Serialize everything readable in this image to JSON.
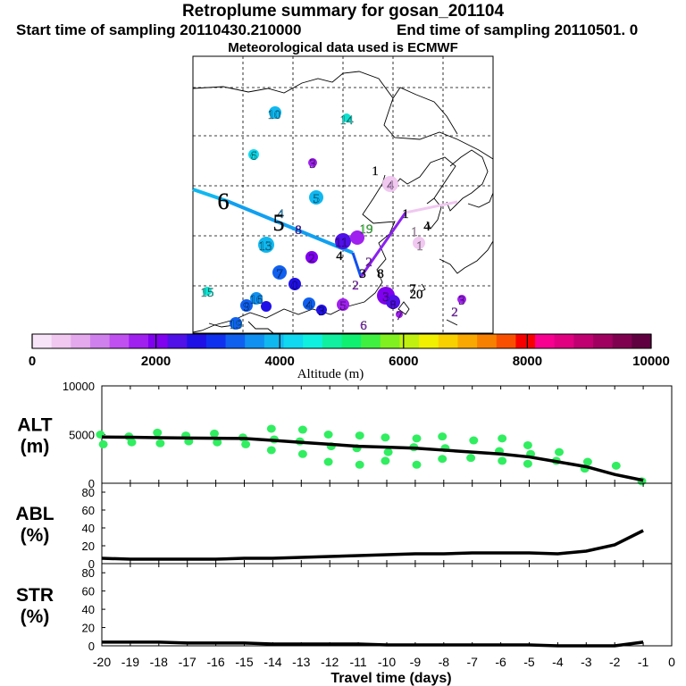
{
  "header": {
    "title": "Retroplume summary for gosan_201104",
    "start": "Start time of sampling 20110430.210000",
    "end": "End time of sampling 20110501.     0",
    "met": "Meteorological data used is ECMWF"
  },
  "colorbar": {
    "label": "Altitude (m)",
    "ticks": [
      "0",
      "2000",
      "4000",
      "6000",
      "8000",
      "10000"
    ],
    "colors": [
      "#f8e4f8",
      "#f0c8f0",
      "#e4a8ec",
      "#d080ec",
      "#c050f0",
      "#a020f0",
      "#8000f0",
      "#5010e8",
      "#2010e8",
      "#1030f0",
      "#1060f0",
      "#1090f0",
      "#10b8f0",
      "#10d8f0",
      "#10f0e0",
      "#10f0a0",
      "#10f070",
      "#40f040",
      "#80f020",
      "#c0f010",
      "#f0f000",
      "#f8d000",
      "#f8a800",
      "#f88000",
      "#f85000",
      "#f80000",
      "#f80090",
      "#e00080",
      "#c00070",
      "#a00060",
      "#800050",
      "#600040"
    ]
  },
  "map_labels": [
    {
      "t": "10",
      "x": 307,
      "y": 127,
      "c": "#10b8f0"
    },
    {
      "t": "14",
      "x": 388,
      "y": 133,
      "c": "#10e0d0"
    },
    {
      "t": "6",
      "x": 284,
      "y": 173,
      "c": "#10e0d0"
    },
    {
      "t": "3",
      "x": 350,
      "y": 182,
      "c": "#a020f0"
    },
    {
      "t": "1",
      "x": 420,
      "y": 190,
      "c": "#000000"
    },
    {
      "t": "4",
      "x": 437,
      "y": 206,
      "c": "#e0a8ec"
    },
    {
      "t": "5",
      "x": 354,
      "y": 221,
      "c": "#10b8f0"
    },
    {
      "t": "6",
      "x": 250,
      "y": 228,
      "c": "#000000"
    },
    {
      "t": "4",
      "x": 314,
      "y": 238,
      "c": "#10a0f0"
    },
    {
      "t": "1",
      "x": 454,
      "y": 238,
      "c": "#000000"
    },
    {
      "t": "5",
      "x": 312,
      "y": 252,
      "c": "#000000"
    },
    {
      "t": "4",
      "x": 478,
      "y": 252,
      "c": "#000000"
    },
    {
      "t": "8",
      "x": 334,
      "y": 256,
      "c": "#5010e8"
    },
    {
      "t": "19",
      "x": 410,
      "y": 255,
      "c": "#40f040"
    },
    {
      "t": "1",
      "x": 464,
      "y": 258,
      "c": "#f0c8f0"
    },
    {
      "t": "11",
      "x": 382,
      "y": 270,
      "c": "#5010e8"
    },
    {
      "t": "13",
      "x": 297,
      "y": 274,
      "c": "#10b8f0"
    },
    {
      "t": "1",
      "x": 470,
      "y": 274,
      "c": "#f0c8f0"
    },
    {
      "t": "4",
      "x": 380,
      "y": 285,
      "c": "#000000"
    },
    {
      "t": "2",
      "x": 349,
      "y": 288,
      "c": "#8000f0"
    },
    {
      "t": "2",
      "x": 413,
      "y": 292,
      "c": "#a020f0"
    },
    {
      "t": "7",
      "x": 313,
      "y": 305,
      "c": "#1060f0"
    },
    {
      "t": "3",
      "x": 406,
      "y": 305,
      "c": "#000000"
    },
    {
      "t": "8",
      "x": 426,
      "y": 305,
      "c": "#000000"
    },
    {
      "t": "0",
      "x": 330,
      "y": 318,
      "c": "#2010e8"
    },
    {
      "t": "2",
      "x": 398,
      "y": 318,
      "c": "#a020f0"
    },
    {
      "t": "15",
      "x": 232,
      "y": 326,
      "c": "#10e0d0"
    },
    {
      "t": "3",
      "x": 432,
      "y": 331,
      "c": "#8000f0"
    },
    {
      "t": "7",
      "x": 462,
      "y": 322,
      "c": "#000000"
    },
    {
      "t": "20",
      "x": 466,
      "y": 328,
      "c": "#000000"
    },
    {
      "t": "16",
      "x": 287,
      "y": 334,
      "c": "#1090f0"
    },
    {
      "t": "3",
      "x": 517,
      "y": 335,
      "c": "#a020f0"
    },
    {
      "t": "9",
      "x": 276,
      "y": 342,
      "c": "#1060f0"
    },
    {
      "t": "4",
      "x": 346,
      "y": 340,
      "c": "#1060f0"
    },
    {
      "t": "8",
      "x": 440,
      "y": 340,
      "c": "#5010e8"
    },
    {
      "t": "3",
      "x": 360,
      "y": 347,
      "c": "#2010e8"
    },
    {
      "t": "5",
      "x": 384,
      "y": 341,
      "c": "#a020f0"
    },
    {
      "t": "2",
      "x": 509,
      "y": 348,
      "c": "#a020f0"
    },
    {
      "t": "7",
      "x": 447,
      "y": 352,
      "c": "#a020f0"
    },
    {
      "t": "19",
      "x": 264,
      "y": 362,
      "c": "#1090f0"
    },
    {
      "t": "6",
      "x": 407,
      "y": 363,
      "c": "#a020f0"
    }
  ],
  "chart_data": [
    {
      "type": "line",
      "panel": "ALT",
      "ylabel": "ALT\n(m)",
      "ylim": [
        0,
        10000
      ],
      "yticks": [
        "10000",
        "5000",
        "0"
      ],
      "x": [
        -20,
        -19,
        -18,
        -17,
        -16,
        -15,
        -14,
        -13,
        -12,
        -11,
        -10,
        -9,
        -8,
        -7,
        -6,
        -5,
        -4,
        -3,
        -2,
        -1
      ],
      "values": [
        4750,
        4720,
        4680,
        4650,
        4620,
        4600,
        4400,
        4200,
        4000,
        3800,
        3700,
        3600,
        3400,
        3200,
        3000,
        2700,
        2200,
        1700,
        900,
        300
      ],
      "scatter_x": [
        -20,
        -20,
        -19,
        -19,
        -18,
        -18,
        -17,
        -17,
        -16,
        -16,
        -15,
        -15,
        -14,
        -14,
        -14,
        -13,
        -13,
        -13,
        -12,
        -12,
        -12,
        -11,
        -11,
        -11,
        -10,
        -10,
        -10,
        -9,
        -9,
        -9,
        -8,
        -8,
        -8,
        -7,
        -7,
        -6,
        -6,
        -6,
        -5,
        -5,
        -5,
        -4,
        -4,
        -3,
        -3,
        -2,
        -1
      ],
      "scatter_y": [
        5000,
        4000,
        4800,
        4200,
        5200,
        4100,
        4900,
        4300,
        5100,
        4200,
        4700,
        4000,
        5600,
        4500,
        3400,
        5500,
        4300,
        3000,
        5000,
        3800,
        2200,
        4900,
        3600,
        1900,
        4700,
        3200,
        2300,
        4600,
        3700,
        1900,
        4800,
        3600,
        2500,
        4400,
        2600,
        4600,
        3300,
        2300,
        3900,
        3000,
        2000,
        3200,
        2300,
        2200,
        1500,
        1800,
        200
      ],
      "scatter_color": "#30ee60"
    },
    {
      "type": "line",
      "panel": "ABL",
      "ylabel": "ABL\n(%)",
      "ylim": [
        0,
        90
      ],
      "yticks": [
        "80",
        "60",
        "40",
        "20",
        "0"
      ],
      "x": [
        -20,
        -19,
        -18,
        -17,
        -16,
        -15,
        -14,
        -13,
        -12,
        -11,
        -10,
        -9,
        -8,
        -7,
        -6,
        -5,
        -4,
        -3,
        -2,
        -1
      ],
      "values": [
        6,
        5,
        5,
        5,
        5,
        6,
        6,
        7,
        8,
        9,
        10,
        11,
        11,
        12,
        12,
        12,
        11,
        14,
        21,
        37
      ]
    },
    {
      "type": "line",
      "panel": "STR",
      "ylabel": "STR\n(%)",
      "ylim": [
        0,
        90
      ],
      "yticks": [
        "80",
        "60",
        "40",
        "20",
        "0"
      ],
      "x": [
        -20,
        -19,
        -18,
        -17,
        -16,
        -15,
        -14,
        -13,
        -12,
        -11,
        -10,
        -9,
        -8,
        -7,
        -6,
        -5,
        -4,
        -3,
        -2,
        -1
      ],
      "values": [
        4,
        4,
        4,
        3,
        3,
        3,
        2,
        2,
        2,
        2,
        1,
        1,
        1,
        1,
        1,
        1,
        0,
        0,
        0,
        4
      ],
      "xlabel": "Travel time (days)",
      "xticks": [
        "-20",
        "-19",
        "-18",
        "-17",
        "-16",
        "-15",
        "-14",
        "-13",
        "-12",
        "-11",
        "-10",
        "-9",
        "-8",
        "-7",
        "-6",
        "-5",
        "-4",
        "-3",
        "-2",
        "-1",
        "0"
      ]
    }
  ]
}
